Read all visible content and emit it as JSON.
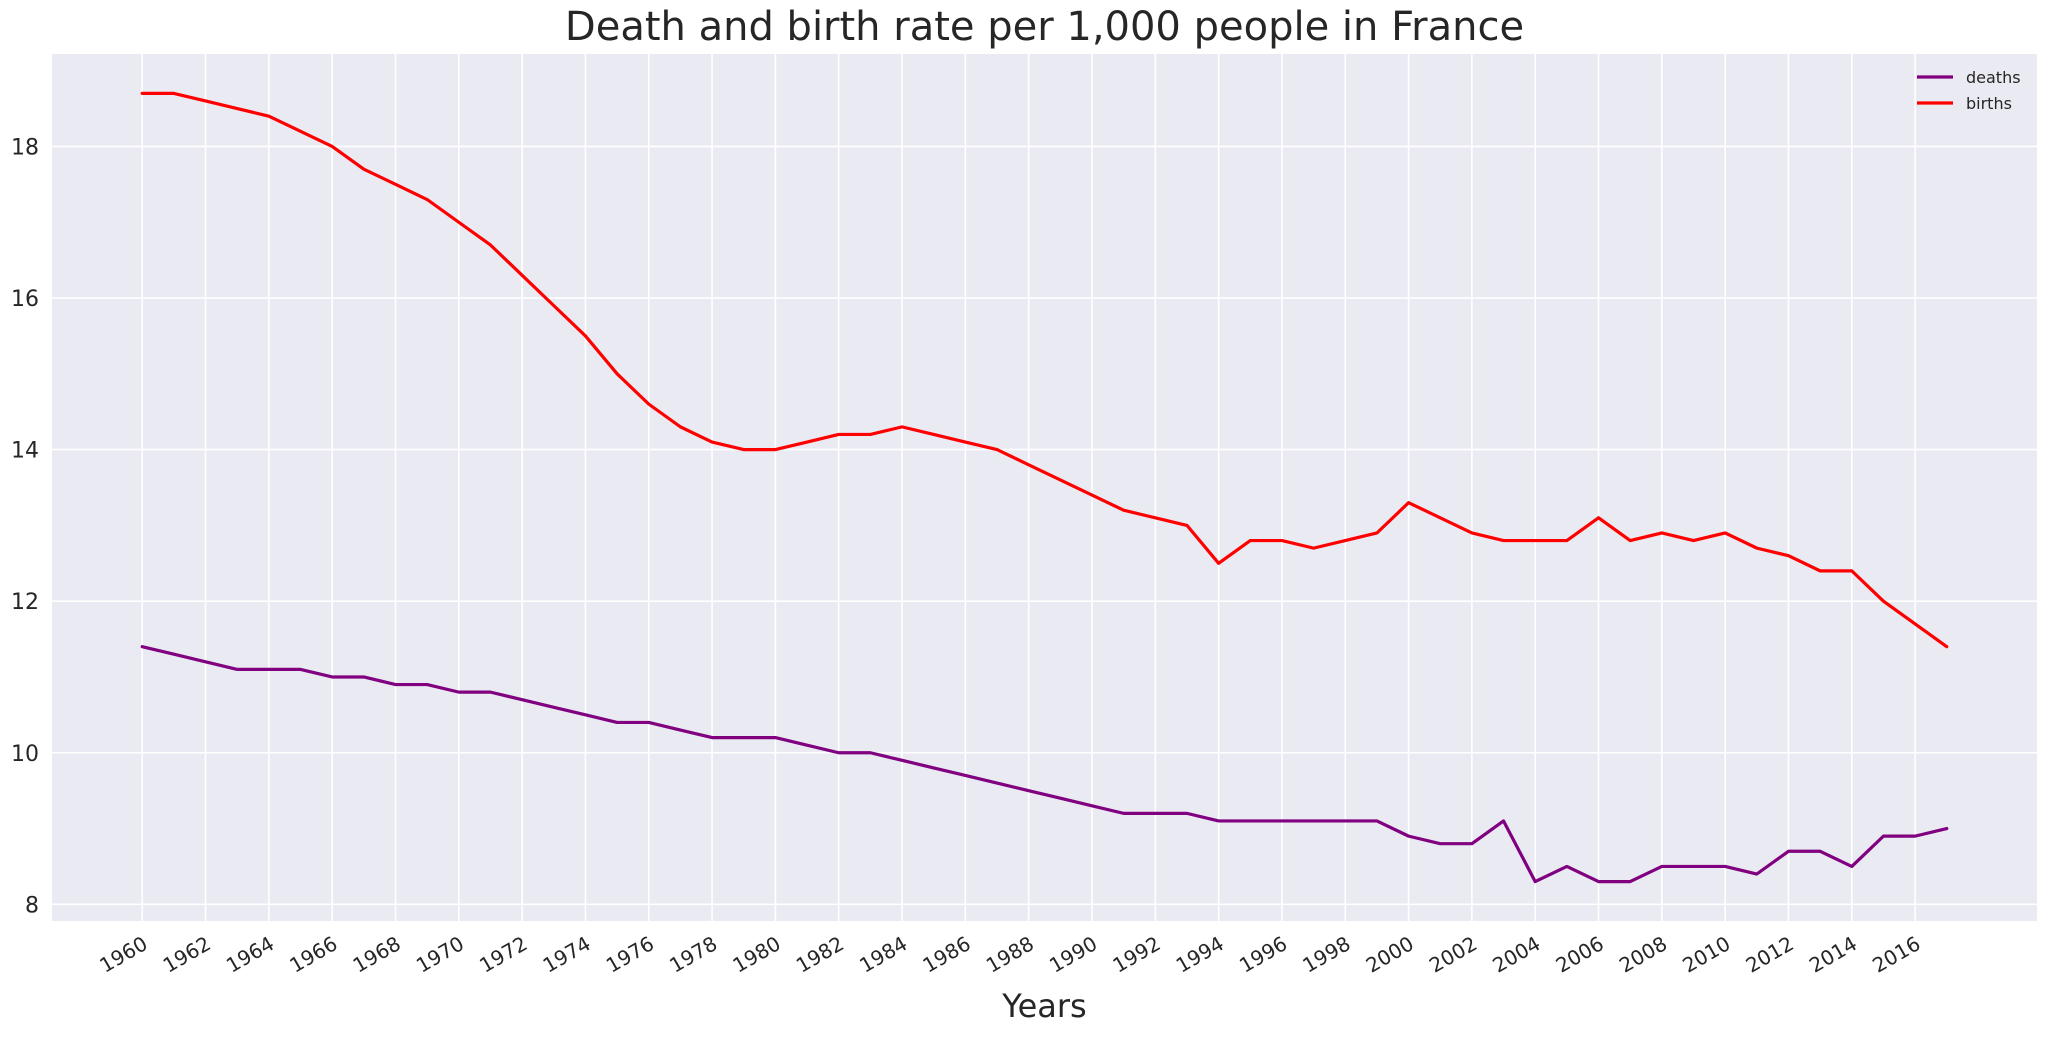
{
  "chart_data": {
    "type": "line",
    "title": "Death and birth rate per 1,000 people in France",
    "xlabel": "Years",
    "ylabel": "",
    "x": [
      1960,
      1961,
      1962,
      1963,
      1964,
      1965,
      1966,
      1967,
      1968,
      1969,
      1970,
      1971,
      1972,
      1973,
      1974,
      1975,
      1976,
      1977,
      1978,
      1979,
      1980,
      1981,
      1982,
      1983,
      1984,
      1985,
      1986,
      1987,
      1988,
      1989,
      1990,
      1991,
      1992,
      1993,
      1994,
      1995,
      1996,
      1997,
      1998,
      1999,
      2000,
      2001,
      2002,
      2003,
      2004,
      2005,
      2006,
      2007,
      2008,
      2009,
      2010,
      2011,
      2012,
      2013,
      2014,
      2015,
      2016,
      2017
    ],
    "x_ticks": [
      "1960",
      "1962",
      "1964",
      "1966",
      "1968",
      "1970",
      "1972",
      "1974",
      "1976",
      "1978",
      "1980",
      "1982",
      "1984",
      "1986",
      "1988",
      "1990",
      "1992",
      "1994",
      "1996",
      "1998",
      "2000",
      "2002",
      "2004",
      "2006",
      "2008",
      "2010",
      "2012",
      "2014",
      "2016"
    ],
    "y_ticks": [
      "8",
      "10",
      "12",
      "14",
      "16",
      "18"
    ],
    "xlim": [
      1957.15,
      2019.85
    ],
    "ylim": [
      7.78,
      19.22
    ],
    "grid": true,
    "legend_position": "top-right",
    "series": [
      {
        "name": "deaths",
        "color": "#800080",
        "values": [
          11.4,
          11.3,
          11.2,
          11.1,
          11.1,
          11.1,
          11.0,
          11.0,
          10.9,
          10.9,
          10.8,
          10.8,
          10.7,
          10.6,
          10.5,
          10.4,
          10.4,
          10.3,
          10.2,
          10.2,
          10.2,
          10.1,
          10.0,
          10.0,
          9.9,
          9.8,
          9.7,
          9.6,
          9.5,
          9.4,
          9.3,
          9.2,
          9.2,
          9.2,
          9.1,
          9.1,
          9.1,
          9.1,
          9.1,
          9.1,
          8.9,
          8.8,
          8.8,
          9.1,
          8.3,
          8.5,
          8.3,
          8.3,
          8.5,
          8.5,
          8.5,
          8.4,
          8.7,
          8.7,
          8.5,
          8.9,
          8.9,
          9.0
        ]
      },
      {
        "name": "births",
        "color": "#ff0000",
        "values": [
          18.7,
          18.7,
          18.6,
          18.5,
          18.4,
          18.2,
          18.0,
          17.7,
          17.5,
          17.3,
          17.0,
          16.7,
          16.3,
          15.9,
          15.5,
          15.0,
          14.6,
          14.3,
          14.1,
          14.0,
          14.0,
          14.1,
          14.2,
          14.2,
          14.3,
          14.2,
          14.1,
          14.0,
          13.8,
          13.6,
          13.4,
          13.2,
          13.1,
          13.0,
          12.5,
          12.8,
          12.8,
          12.7,
          12.8,
          12.9,
          13.3,
          13.1,
          12.9,
          12.8,
          12.8,
          12.8,
          13.1,
          12.8,
          12.9,
          12.8,
          12.9,
          12.7,
          12.6,
          12.4,
          12.4,
          12.0,
          11.7,
          11.4
        ]
      }
    ]
  }
}
